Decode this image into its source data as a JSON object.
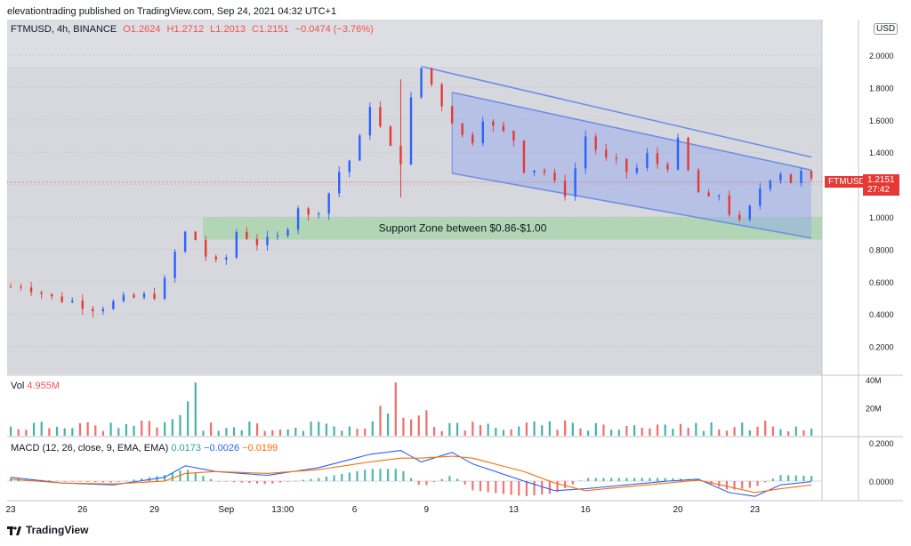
{
  "header": {
    "publisher": "elevationtrading published on TradingView.com, Sep 24, 2021 04:32 UTC+1"
  },
  "legend": {
    "symbol": "FTMUSD, 4h, BINANCE",
    "open": "O1.2624",
    "high": "H1.2712",
    "low": "L1.2013",
    "close": "C1.2151",
    "change": "−0.0474 (−3.76%)"
  },
  "price_axis": {
    "currency": "USD",
    "current_symbol": "FTMUSD",
    "current_price": "1.2151",
    "countdown": "27:42"
  },
  "volume": {
    "label": "Vol",
    "value": "4.955M"
  },
  "macd": {
    "label": "MACD (12, 26, close, 9, EMA, EMA)",
    "hist": "0.0173",
    "macd_val": "−0.0026",
    "signal_val": "−0.0199"
  },
  "annotation": {
    "support": "Support Zone between $0.86-$1.00"
  },
  "brand": {
    "name": "TradingView"
  },
  "colors": {
    "up": "#26a69a",
    "down": "#ef5350",
    "candle_up": "#2962ff",
    "candle_down": "#e53935",
    "channel": "#6f8fe8",
    "support": "#a5d6a7",
    "macd_line": "#2962ff",
    "signal_line": "#ff6d00"
  },
  "chart_data": [
    {
      "type": "candlestick",
      "ylim": [
        0.1,
        2.5
      ],
      "yticks": [
        "0.2000",
        "0.4000",
        "0.6000",
        "0.8000",
        "1.0000",
        "1.2000",
        "1.4000",
        "1.6000",
        "1.8000",
        "2.0000"
      ],
      "x_ticks": [
        "23",
        "26",
        "29",
        "Sep",
        "13:00",
        "6",
        "9",
        "13",
        "16",
        "20",
        "23"
      ],
      "support_zone": [
        0.86,
        1.0
      ],
      "close_path": [
        [
          0,
          0.57
        ],
        [
          4,
          0.58
        ],
        [
          8,
          0.56
        ],
        [
          12,
          0.53
        ],
        [
          16,
          0.5
        ],
        [
          20,
          0.49
        ],
        [
          24,
          0.48
        ],
        [
          28,
          0.46
        ],
        [
          32,
          0.44
        ],
        [
          36,
          0.45
        ],
        [
          40,
          0.47
        ],
        [
          44,
          0.49
        ],
        [
          48,
          0.5
        ],
        [
          52,
          0.51
        ],
        [
          56,
          0.52
        ],
        [
          60,
          0.6
        ],
        [
          64,
          0.78
        ],
        [
          68,
          0.9
        ],
        [
          72,
          0.86
        ],
        [
          76,
          0.76
        ],
        [
          80,
          0.71
        ],
        [
          84,
          0.75
        ],
        [
          88,
          0.91
        ],
        [
          92,
          0.88
        ],
        [
          96,
          0.84
        ],
        [
          100,
          0.85
        ],
        [
          104,
          0.87
        ],
        [
          108,
          0.95
        ],
        [
          112,
          1.07
        ],
        [
          116,
          1.0
        ],
        [
          120,
          1.05
        ],
        [
          124,
          1.15
        ],
        [
          128,
          1.28
        ],
        [
          132,
          1.35
        ],
        [
          136,
          1.48
        ],
        [
          140,
          1.7
        ],
        [
          144,
          1.55
        ],
        [
          148,
          1.42
        ],
        [
          152,
          1.35
        ],
        [
          156,
          1.72
        ],
        [
          160,
          1.92
        ],
        [
          164,
          1.82
        ],
        [
          168,
          1.7
        ],
        [
          172,
          1.6
        ],
        [
          176,
          1.5
        ],
        [
          180,
          1.48
        ],
        [
          184,
          1.62
        ],
        [
          188,
          1.55
        ],
        [
          192,
          1.52
        ],
        [
          196,
          1.48
        ],
        [
          200,
          1.3
        ],
        [
          204,
          1.3
        ],
        [
          208,
          1.28
        ],
        [
          212,
          1.2
        ],
        [
          216,
          1.15
        ],
        [
          220,
          1.3
        ],
        [
          224,
          1.5
        ],
        [
          228,
          1.42
        ],
        [
          232,
          1.35
        ],
        [
          236,
          1.33
        ],
        [
          240,
          1.28
        ],
        [
          244,
          1.3
        ],
        [
          248,
          1.38
        ],
        [
          252,
          1.33
        ],
        [
          256,
          1.32
        ],
        [
          260,
          1.46
        ],
        [
          264,
          1.28
        ],
        [
          268,
          1.15
        ],
        [
          272,
          1.1
        ],
        [
          276,
          1.14
        ],
        [
          280,
          1.03
        ],
        [
          284,
          0.96
        ],
        [
          288,
          1.05
        ],
        [
          292,
          1.18
        ],
        [
          296,
          1.25
        ],
        [
          300,
          1.28
        ],
        [
          304,
          1.22
        ],
        [
          308,
          1.27
        ],
        [
          312,
          1.215
        ]
      ],
      "upper_channel": [
        [
          160,
          1.93
        ],
        [
          312,
          1.37
        ]
      ],
      "middle_channel": [
        [
          172,
          1.77
        ],
        [
          312,
          1.29
        ]
      ],
      "lower_channel": [
        [
          172,
          1.27
        ],
        [
          312,
          0.87
        ]
      ]
    },
    {
      "type": "bar",
      "name": "Vol",
      "yticks": [
        "20M",
        "40M"
      ],
      "ylim": [
        0,
        40
      ]
    },
    {
      "type": "line",
      "name": "MACD",
      "yticks": [
        "0.0000",
        "0.2000"
      ],
      "ylim": [
        -0.12,
        0.24
      ],
      "macd_line": [
        [
          0,
          0.02
        ],
        [
          20,
          -0.01
        ],
        [
          40,
          -0.02
        ],
        [
          60,
          0.02
        ],
        [
          68,
          0.08
        ],
        [
          80,
          0.05
        ],
        [
          100,
          0.03
        ],
        [
          120,
          0.07
        ],
        [
          140,
          0.14
        ],
        [
          152,
          0.16
        ],
        [
          160,
          0.1
        ],
        [
          172,
          0.15
        ],
        [
          180,
          0.09
        ],
        [
          200,
          0.0
        ],
        [
          212,
          -0.05
        ],
        [
          224,
          -0.04
        ],
        [
          240,
          -0.02
        ],
        [
          256,
          0.0
        ],
        [
          268,
          0.01
        ],
        [
          280,
          -0.06
        ],
        [
          290,
          -0.08
        ],
        [
          300,
          -0.02
        ],
        [
          312,
          -0.003
        ]
      ],
      "signal_line": [
        [
          0,
          0.01
        ],
        [
          20,
          -0.01
        ],
        [
          40,
          -0.015
        ],
        [
          60,
          0.0
        ],
        [
          68,
          0.04
        ],
        [
          80,
          0.05
        ],
        [
          100,
          0.04
        ],
        [
          120,
          0.06
        ],
        [
          140,
          0.1
        ],
        [
          152,
          0.12
        ],
        [
          160,
          0.12
        ],
        [
          172,
          0.13
        ],
        [
          180,
          0.12
        ],
        [
          200,
          0.05
        ],
        [
          212,
          -0.01
        ],
        [
          224,
          -0.05
        ],
        [
          240,
          -0.03
        ],
        [
          256,
          -0.01
        ],
        [
          268,
          0.005
        ],
        [
          280,
          -0.03
        ],
        [
          290,
          -0.06
        ],
        [
          300,
          -0.04
        ],
        [
          312,
          -0.02
        ]
      ]
    }
  ]
}
